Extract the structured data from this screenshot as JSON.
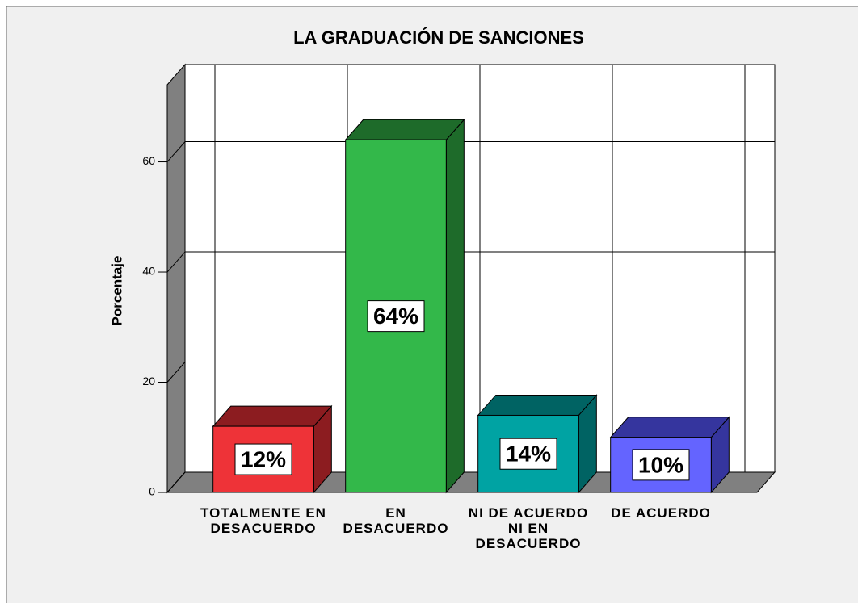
{
  "chart_data": {
    "type": "bar3d",
    "title": "LA GRADUACIÓN DE SANCIONES",
    "y_label": "Porcentaje",
    "categories": [
      "TOTALMENTE EN DESACUERDO",
      "EN DESACUERDO",
      "NI DE ACUERDO NI EN DESACUERDO",
      "DE ACUERDO"
    ],
    "values": [
      12,
      64,
      14,
      10
    ],
    "value_labels": [
      "12%",
      "64%",
      "14%",
      "10%"
    ],
    "colors": [
      "#ee3338",
      "#33b84a",
      "#00a3a3",
      "#6464ff"
    ],
    "side_colors": [
      "#8c1c20",
      "#1e6b2a",
      "#006363",
      "#35359e"
    ],
    "ylim": [
      0,
      74
    ],
    "yticks": [
      0,
      20,
      40,
      60
    ],
    "grid": true
  }
}
